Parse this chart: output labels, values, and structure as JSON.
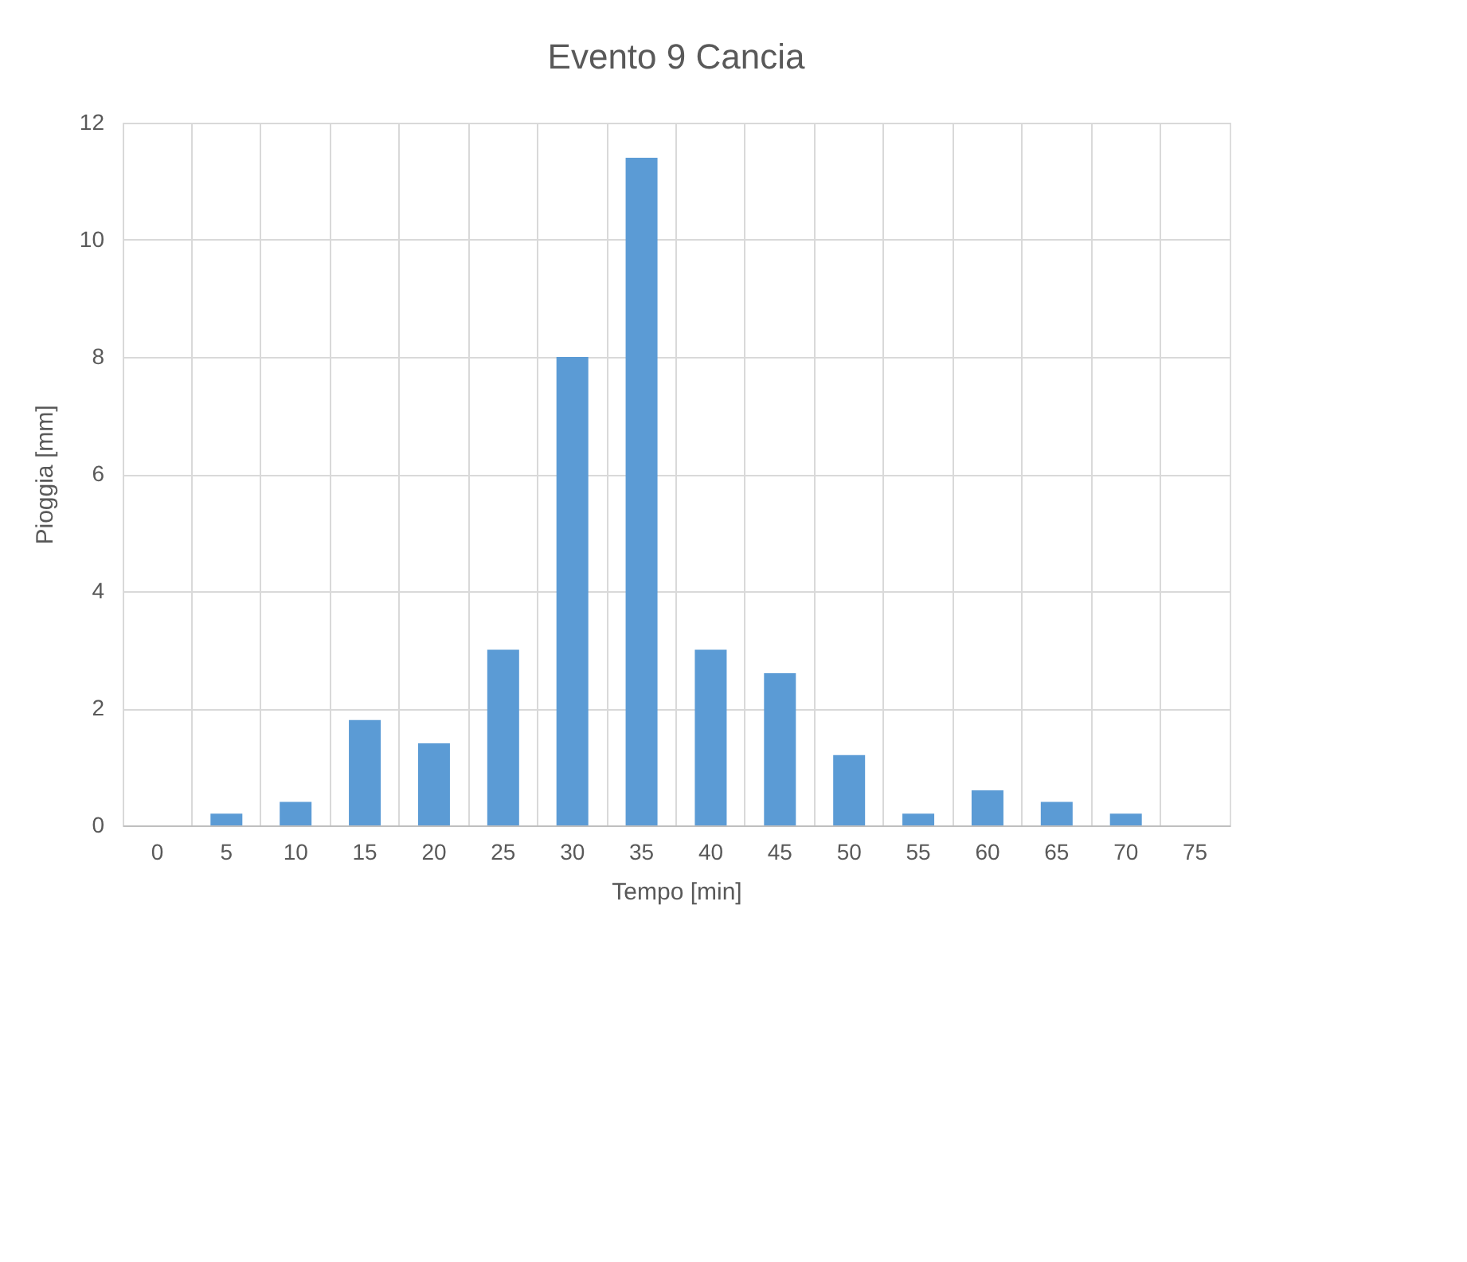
{
  "chart_data": {
    "type": "bar",
    "title": "Evento 9 Cancia",
    "xlabel": "Tempo [min]",
    "ylabel": "Pioggia [mm]",
    "categories": [
      "0",
      "5",
      "10",
      "15",
      "20",
      "25",
      "30",
      "35",
      "40",
      "45",
      "50",
      "55",
      "60",
      "65",
      "70",
      "75"
    ],
    "values": [
      0,
      0.2,
      0.4,
      1.8,
      1.4,
      3,
      8,
      11.4,
      3,
      2.6,
      1.2,
      0.2,
      0.6,
      0.4,
      0.2,
      0
    ],
    "color": "#5b9bd5",
    "ylim": [
      0,
      12
    ],
    "yticks": [
      0,
      2,
      4,
      6,
      8,
      10,
      12
    ],
    "grid": true
  }
}
